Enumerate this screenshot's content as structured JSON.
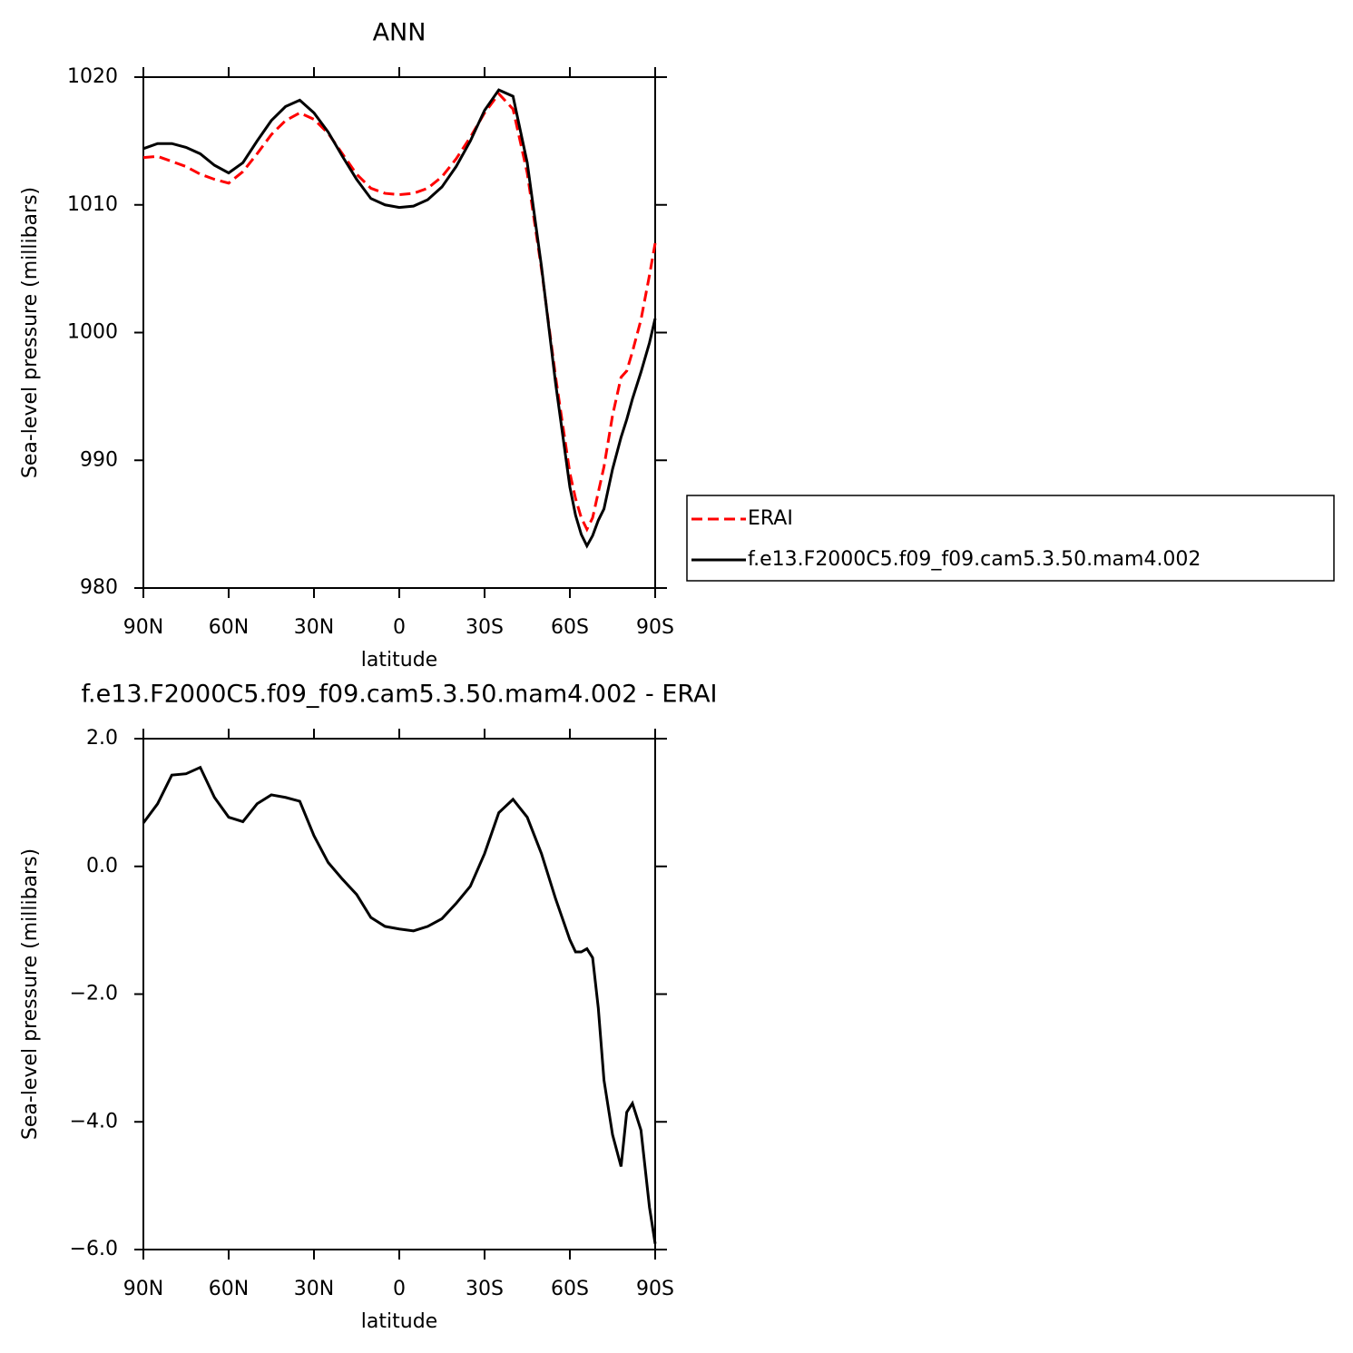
{
  "chart_data": [
    {
      "type": "line",
      "title": "ANN",
      "xlabel": "latitude",
      "ylabel": "Sea-level pressure (millibars)",
      "x": [
        90,
        85,
        80,
        75,
        70,
        65,
        60,
        55,
        50,
        45,
        40,
        35,
        30,
        25,
        20,
        15,
        10,
        5,
        0,
        -5,
        -10,
        -15,
        -20,
        -25,
        -30,
        -35,
        -40,
        -45,
        -50,
        -55,
        -60,
        -62,
        -64,
        -66,
        -68,
        -70,
        -72,
        -75,
        -78,
        -80,
        -82,
        -85,
        -88,
        -90
      ],
      "xlim": [
        90,
        -90
      ],
      "xticks": [
        {
          "value": 90,
          "label": "90N"
        },
        {
          "value": 60,
          "label": "60N"
        },
        {
          "value": 30,
          "label": "30N"
        },
        0,
        {
          "value": -30,
          "label": "30S"
        },
        {
          "value": -60,
          "label": "60S"
        },
        {
          "value": -90,
          "label": "90S"
        }
      ],
      "ylim": [
        980,
        1020
      ],
      "yticks": [
        980,
        990,
        1000,
        1010,
        1020
      ],
      "series": [
        {
          "name": "ERAI",
          "color": "#ff0000",
          "line_style": "dashed",
          "values": [
            1013.7,
            1013.8,
            1013.4,
            1013.0,
            1012.4,
            1012.0,
            1011.7,
            1012.6,
            1014.0,
            1015.5,
            1016.6,
            1017.2,
            1016.7,
            1015.6,
            1014.0,
            1012.4,
            1011.3,
            1010.9,
            1010.8,
            1010.9,
            1011.3,
            1012.2,
            1013.6,
            1015.3,
            1017.2,
            1018.7,
            1017.5,
            1012.5,
            1005.0,
            996.5,
            989.0,
            987.0,
            985.5,
            984.6,
            985.5,
            987.5,
            989.5,
            993.5,
            996.5,
            997.0,
            998.5,
            1001.0,
            1004.5,
            1007.0
          ]
        },
        {
          "name": "f.e13.F2000C5.f09_f09.cam5.3.50.mam4.002",
          "color": "#000000",
          "line_style": "solid",
          "values": [
            1014.4,
            1014.8,
            1014.8,
            1014.5,
            1014.0,
            1013.1,
            1012.5,
            1013.3,
            1015.0,
            1016.6,
            1017.7,
            1018.2,
            1017.2,
            1015.7,
            1013.8,
            1012.0,
            1010.5,
            1010.0,
            1009.8,
            1009.9,
            1010.4,
            1011.4,
            1013.0,
            1015.0,
            1017.4,
            1019.0,
            1018.5,
            1013.3,
            1005.2,
            996.0,
            987.9,
            985.7,
            984.2,
            983.3,
            984.1,
            985.3,
            986.2,
            989.3,
            991.8,
            993.2,
            994.8,
            996.9,
            999.2,
            1001.1
          ]
        }
      ]
    },
    {
      "type": "line",
      "title": "f.e13.F2000C5.f09_f09.cam5.3.50.mam4.002 - ERAI",
      "xlabel": "latitude",
      "ylabel": "Sea-level pressure (millibars)",
      "x": [
        90,
        85,
        80,
        75,
        70,
        65,
        60,
        55,
        50,
        45,
        40,
        35,
        30,
        25,
        20,
        15,
        10,
        5,
        0,
        -5,
        -10,
        -15,
        -20,
        -25,
        -30,
        -35,
        -40,
        -45,
        -50,
        -55,
        -60,
        -62,
        -64,
        -66,
        -68,
        -70,
        -72,
        -75,
        -78,
        -80,
        -82,
        -85,
        -88,
        -90
      ],
      "xlim": [
        90,
        -90
      ],
      "xticks": [
        {
          "value": 90,
          "label": "90N"
        },
        {
          "value": 60,
          "label": "60N"
        },
        {
          "value": 30,
          "label": "30N"
        },
        0,
        {
          "value": -30,
          "label": "30S"
        },
        {
          "value": -60,
          "label": "60S"
        },
        {
          "value": -90,
          "label": "90S"
        }
      ],
      "ylim": [
        -6,
        2
      ],
      "yticks": [
        {
          "value": -6,
          "label": "−6.0"
        },
        {
          "value": -4,
          "label": "−4.0"
        },
        {
          "value": -2,
          "label": "−2.0"
        },
        {
          "value": 0,
          "label": "0.0"
        },
        {
          "value": 2,
          "label": "2.0"
        }
      ],
      "series": [
        {
          "color": "#000000",
          "line_style": "solid",
          "values": [
            0.68,
            0.98,
            1.43,
            1.45,
            1.55,
            1.08,
            0.77,
            0.7,
            0.98,
            1.12,
            1.08,
            1.02,
            0.48,
            0.06,
            -0.2,
            -0.44,
            -0.8,
            -0.94,
            -0.98,
            -1.01,
            -0.94,
            -0.82,
            -0.58,
            -0.31,
            0.2,
            0.84,
            1.05,
            0.77,
            0.2,
            -0.51,
            -1.15,
            -1.34,
            -1.34,
            -1.29,
            -1.43,
            -2.22,
            -3.35,
            -4.2,
            -4.7,
            -3.85,
            -3.71,
            -4.13,
            -5.34,
            -5.91
          ]
        }
      ]
    }
  ]
}
